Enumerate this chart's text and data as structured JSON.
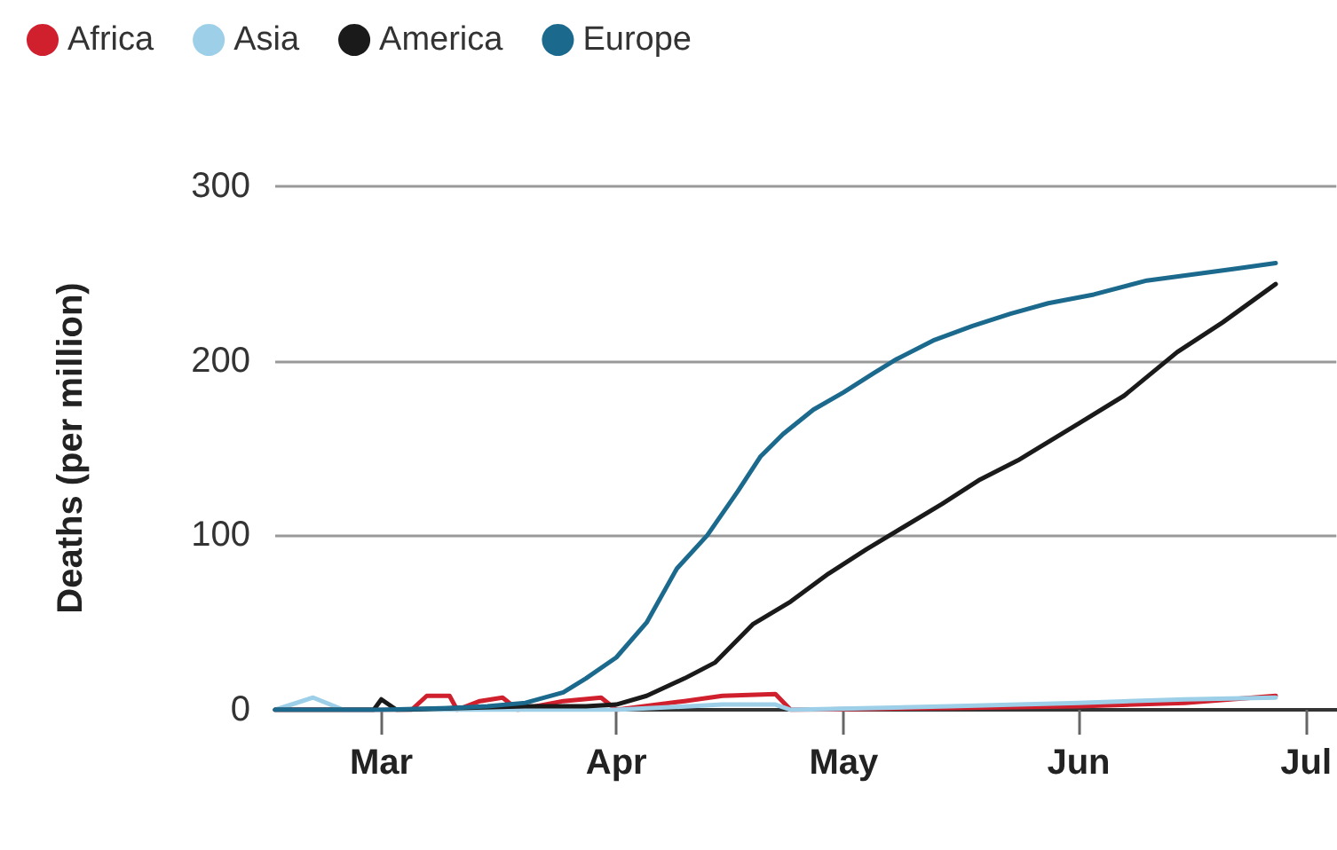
{
  "chart_data": {
    "type": "line",
    "ylabel": "Deaths (per million)",
    "xlim": [
      "--02-15",
      "--07-05"
    ],
    "xticks": [
      {
        "value": "--03-01",
        "label": "Mar"
      },
      {
        "value": "--04-01",
        "label": "Apr"
      },
      {
        "value": "--05-01",
        "label": "May"
      },
      {
        "value": "--06-01",
        "label": "Jun"
      },
      {
        "value": "--07-01",
        "label": "Jul"
      }
    ],
    "ylim": [
      0,
      300
    ],
    "yticks": [
      0,
      100,
      200,
      300
    ],
    "grid": "y",
    "legend": "top left",
    "marker": "none",
    "line_style": "solid",
    "series": [
      {
        "name": "Africa",
        "color": "#d0202e",
        "x": [
          "--02-15",
          "--03-05",
          "--03-07",
          "--03-10",
          "--03-11",
          "--03-14",
          "--03-17",
          "--03-19",
          "--03-25",
          "--03-30",
          "--04-01",
          "--04-10",
          "--04-15",
          "--04-22",
          "--04-24",
          "--05-15",
          "--06-01",
          "--06-15",
          "--06-27"
        ],
        "values": [
          0,
          0,
          8,
          8,
          0,
          5,
          7,
          0,
          5,
          7,
          0,
          5,
          8,
          9,
          0,
          1,
          2,
          4,
          8
        ]
      },
      {
        "name": "Asia",
        "color": "#9dd0e8",
        "x": [
          "--02-15",
          "--02-20",
          "--02-24",
          "--04-01",
          "--04-15",
          "--04-22",
          "--04-24",
          "--05-15",
          "--06-01",
          "--06-15",
          "--06-27"
        ],
        "values": [
          0,
          7,
          0,
          0,
          3,
          3,
          0,
          2,
          4,
          6,
          7
        ]
      },
      {
        "name": "America",
        "color": "#1a1a1a",
        "x": [
          "--02-15",
          "--02-28",
          "--03-01",
          "--03-03",
          "--03-20",
          "--03-28",
          "--04-01",
          "--04-05",
          "--04-10",
          "--04-14",
          "--04-19",
          "--04-24",
          "--04-29",
          "--05-04",
          "--05-09",
          "--05-14",
          "--05-19",
          "--05-24",
          "--06-01",
          "--06-07",
          "--06-14",
          "--06-20",
          "--06-27"
        ],
        "values": [
          0,
          0,
          6,
          0,
          2,
          2,
          3,
          8,
          18,
          27,
          49,
          62,
          78,
          92,
          105,
          118,
          132,
          143,
          164,
          180,
          205,
          222,
          244
        ]
      },
      {
        "name": "Europe",
        "color": "#1b6a8e",
        "x": [
          "--02-15",
          "--03-01",
          "--03-10",
          "--03-15",
          "--03-20",
          "--03-25",
          "--03-28",
          "--04-01",
          "--04-05",
          "--04-09",
          "--04-13",
          "--04-17",
          "--04-20",
          "--04-23",
          "--04-27",
          "--05-01",
          "--05-05",
          "--05-08",
          "--05-13",
          "--05-18",
          "--05-23",
          "--05-28",
          "--06-03",
          "--06-10",
          "--06-17",
          "--06-22",
          "--06-27"
        ],
        "values": [
          0,
          0,
          1,
          2,
          4,
          10,
          18,
          30,
          50,
          81,
          100,
          125,
          145,
          158,
          172,
          182,
          193,
          201,
          212,
          220,
          227,
          233,
          238,
          246,
          250,
          253,
          256
        ]
      }
    ]
  }
}
